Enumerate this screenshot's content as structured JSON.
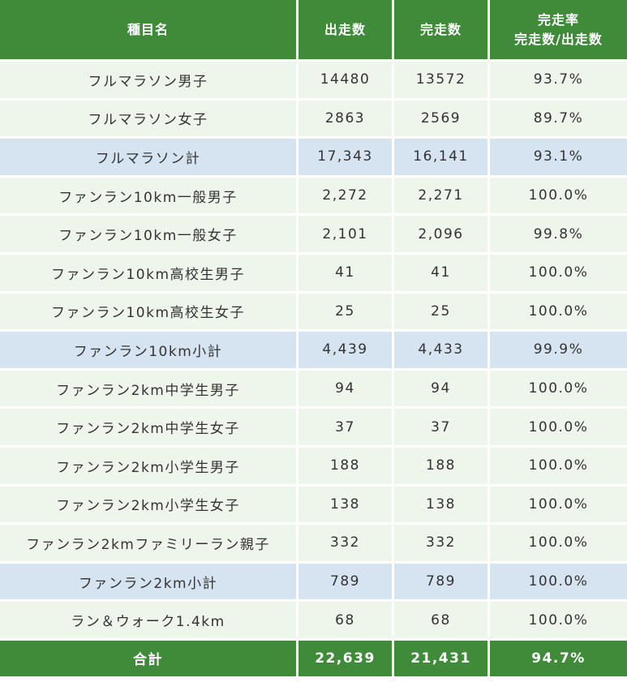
{
  "header": {
    "event": "種目名",
    "starters": "出走数",
    "finishers": "完走数",
    "rate_line1": "完走率",
    "rate_line2": "完走数/出走数"
  },
  "rows": [
    {
      "event": "フルマラソン男子",
      "starters": "14480",
      "finishers": "13572",
      "rate": "93.7%",
      "subtotal": false
    },
    {
      "event": "フルマラソン女子",
      "starters": "2863",
      "finishers": "2569",
      "rate": "89.7%",
      "subtotal": false
    },
    {
      "event": "フルマラソン計",
      "starters": "17,343",
      "finishers": "16,141",
      "rate": "93.1%",
      "subtotal": true
    },
    {
      "event": "ファンラン10km一般男子",
      "starters": "2,272",
      "finishers": "2,271",
      "rate": "100.0%",
      "subtotal": false
    },
    {
      "event": "ファンラン10km一般女子",
      "starters": "2,101",
      "finishers": "2,096",
      "rate": "99.8%",
      "subtotal": false
    },
    {
      "event": "ファンラン10km高校生男子",
      "starters": "41",
      "finishers": "41",
      "rate": "100.0%",
      "subtotal": false
    },
    {
      "event": "ファンラン10km高校生女子",
      "starters": "25",
      "finishers": "25",
      "rate": "100.0%",
      "subtotal": false
    },
    {
      "event": "ファンラン10km小計",
      "starters": "4,439",
      "finishers": "4,433",
      "rate": "99.9%",
      "subtotal": true
    },
    {
      "event": "ファンラン2km中学生男子",
      "starters": "94",
      "finishers": "94",
      "rate": "100.0%",
      "subtotal": false
    },
    {
      "event": "ファンラン2km中学生女子",
      "starters": "37",
      "finishers": "37",
      "rate": "100.0%",
      "subtotal": false
    },
    {
      "event": "ファンラン2km小学生男子",
      "starters": "188",
      "finishers": "188",
      "rate": "100.0%",
      "subtotal": false
    },
    {
      "event": "ファンラン2km小学生女子",
      "starters": "138",
      "finishers": "138",
      "rate": "100.0%",
      "subtotal": false
    },
    {
      "event": "ファンラン2kmファミリーラン親子",
      "starters": "332",
      "finishers": "332",
      "rate": "100.0%",
      "subtotal": false
    },
    {
      "event": "ファンラン2km小計",
      "starters": "789",
      "finishers": "789",
      "rate": "100.0%",
      "subtotal": true
    },
    {
      "event": "ラン＆ウォーク1.4km",
      "starters": "68",
      "finishers": "68",
      "rate": "100.0%",
      "subtotal": false
    }
  ],
  "total": {
    "event": "合計",
    "starters": "22,639",
    "finishers": "21,431",
    "rate": "94.7%"
  }
}
